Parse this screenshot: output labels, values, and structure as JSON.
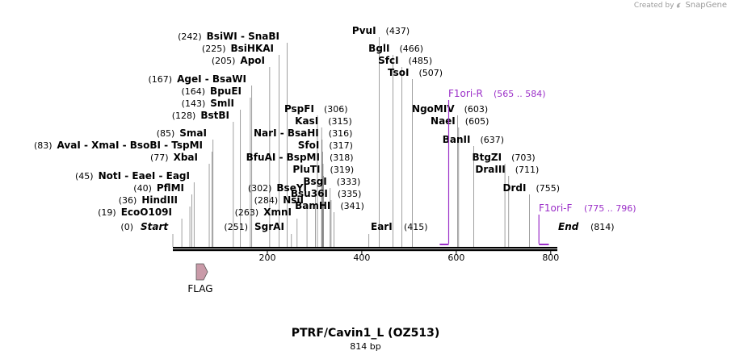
{
  "credit": {
    "prefix": "Created by",
    "brand": "SnapGene"
  },
  "title": "PTRF/Cavin1_L (OZ513)",
  "subtitle": "814 bp",
  "sequence_length": 814,
  "ticks": [
    200,
    400,
    600,
    800
  ],
  "feature": {
    "label": "FLAG",
    "color": "#c99aa8"
  },
  "primer_color": "#9b2fc8",
  "labels": [
    {
      "row": 0,
      "items": [
        {
          "pos": 0,
          "text": "(0)"
        },
        {
          "pos": 0,
          "text": "Start",
          "italic": true
        }
      ]
    },
    {
      "row": 0,
      "items": [
        {
          "pos": 251,
          "text": "(251)"
        },
        {
          "pos": 251,
          "text": "SgrAI"
        }
      ]
    },
    {
      "row": 0,
      "items": [
        {
          "pos": 415,
          "text": "EarI"
        },
        {
          "pos": 415,
          "text": "(415)",
          "plain": true
        }
      ]
    },
    {
      "row": 0,
      "items": [
        {
          "pos": 814,
          "text": "End",
          "italic": true
        },
        {
          "pos": 814,
          "text": "(814)",
          "plain": true
        }
      ]
    }
  ],
  "enzymes": [
    {
      "name": "EcoO109I",
      "pos": 19,
      "num": "(19)"
    },
    {
      "name": "HindIII",
      "pos": 36,
      "num": "(36)"
    },
    {
      "name": "PflMI",
      "pos": 40,
      "num": "(40)"
    },
    {
      "name": "NotI - EaeI - EagI",
      "pos": 45,
      "num": "(45)"
    },
    {
      "name": "XbaI",
      "pos": 77,
      "num": "(77)"
    },
    {
      "name": "AvaI - XmaI - BsoBI - TspMI",
      "pos": 83,
      "num": "(83)"
    },
    {
      "name": "SmaI",
      "pos": 85,
      "num": "(85)"
    },
    {
      "name": "BstBI",
      "pos": 128,
      "num": "(128)"
    },
    {
      "name": "SmlI",
      "pos": 143,
      "num": "(143)"
    },
    {
      "name": "BpuEI",
      "pos": 164,
      "num": "(164)"
    },
    {
      "name": "AgeI - BsaWI",
      "pos": 167,
      "num": "(167)"
    },
    {
      "name": "ApoI",
      "pos": 205,
      "num": "(205)"
    },
    {
      "name": "BsiHKAI",
      "pos": 225,
      "num": "(225)"
    },
    {
      "name": "BsiWI - SnaBI",
      "pos": 242,
      "num": "(242)"
    },
    {
      "name": "SgrAI",
      "pos": 251,
      "num": "(251)"
    },
    {
      "name": "XmnI",
      "pos": 263,
      "num": "(263)"
    },
    {
      "name": "NsiI",
      "pos": 284,
      "num": "(284)"
    },
    {
      "name": "BseYI",
      "pos": 302,
      "num": "(302)"
    },
    {
      "name": "PspFI",
      "pos": 306,
      "num": "(306)"
    },
    {
      "name": "KasI",
      "pos": 315,
      "num": "(315)"
    },
    {
      "name": "NarI - BsaHI",
      "pos": 316,
      "num": "(316)"
    },
    {
      "name": "SfoI",
      "pos": 317,
      "num": "(317)"
    },
    {
      "name": "BfuAI - BspMI",
      "pos": 318,
      "num": "(318)"
    },
    {
      "name": "PluTI",
      "pos": 319,
      "num": "(319)"
    },
    {
      "name": "BsgI",
      "pos": 333,
      "num": "(333)"
    },
    {
      "name": "Bsu36I",
      "pos": 335,
      "num": "(335)"
    },
    {
      "name": "BamHI",
      "pos": 341,
      "num": "(341)"
    },
    {
      "name": "EarI",
      "pos": 415,
      "num": "(415)"
    },
    {
      "name": "PvuI",
      "pos": 437,
      "num": "(437)"
    },
    {
      "name": "BglI",
      "pos": 466,
      "num": "(466)"
    },
    {
      "name": "SfcI",
      "pos": 485,
      "num": "(485)"
    },
    {
      "name": "TsoI",
      "pos": 507,
      "num": "(507)"
    },
    {
      "name": "NgoMIV",
      "pos": 603,
      "num": "(603)"
    },
    {
      "name": "NaeI",
      "pos": 605,
      "num": "(605)"
    },
    {
      "name": "BanII",
      "pos": 637,
      "num": "(637)"
    },
    {
      "name": "BtgZI",
      "pos": 703,
      "num": "(703)"
    },
    {
      "name": "DraIII",
      "pos": 711,
      "num": "(711)"
    },
    {
      "name": "DrdI",
      "pos": 755,
      "num": "(755)"
    }
  ],
  "primers": [
    {
      "name": "F1ori-R",
      "range": "(565 .. 584)",
      "start": 565,
      "end": 584
    },
    {
      "name": "F1ori-F",
      "range": "(775 .. 796)",
      "start": 775,
      "end": 796
    }
  ],
  "ends": {
    "start": "Start",
    "start_num": "(0)",
    "end": "End",
    "end_num": "(814)"
  }
}
